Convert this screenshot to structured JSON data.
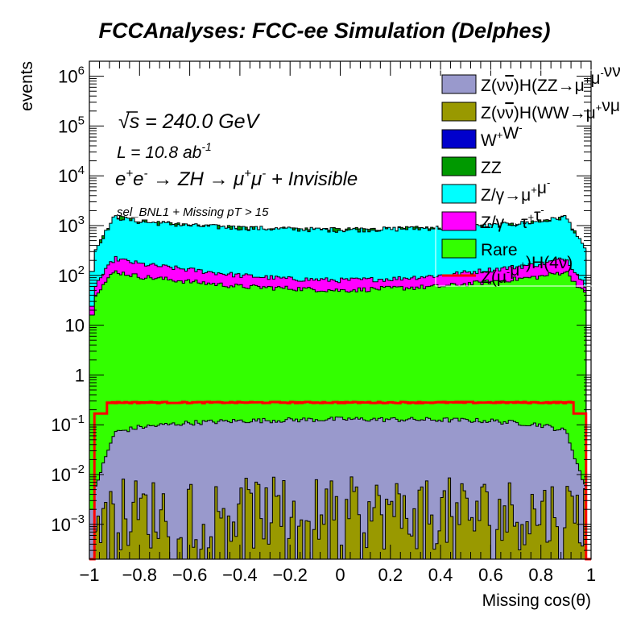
{
  "chart_data": {
    "type": "area",
    "title": "FCCAnalyses: FCC-ee Simulation (Delphes)",
    "xlabel": "Missing cos(θ)",
    "ylabel": "events",
    "y_scale": "log",
    "xlim": [
      -1,
      1
    ],
    "ylim": [
      0.0002,
      2000000
    ],
    "x_ticks": [
      "−1",
      "−0.8",
      "−0.6",
      "−0.4",
      "−0.2",
      "0",
      "0.2",
      "0.4",
      "0.6",
      "0.8",
      "1"
    ],
    "y_ticks": [
      {
        "base": "10",
        "exp": "6",
        "value": 1000000
      },
      {
        "base": "10",
        "exp": "5",
        "value": 100000
      },
      {
        "base": "10",
        "exp": "4",
        "value": 10000
      },
      {
        "base": "10",
        "exp": "3",
        "value": 1000
      },
      {
        "base": "10",
        "exp": "2",
        "value": 100
      },
      {
        "base": "10",
        "exp": "",
        "value": 10
      },
      {
        "base": "1",
        "exp": "",
        "value": 1
      },
      {
        "base": "10",
        "exp": "−1",
        "value": 0.1
      },
      {
        "base": "10",
        "exp": "−2",
        "value": 0.01
      },
      {
        "base": "10",
        "exp": "−3",
        "value": 0.001
      }
    ],
    "annotations": {
      "sqrt_s": {
        "symbol": "√s",
        "rest": " = 240.0 GeV"
      },
      "lumi": {
        "main": "L = 10.8 ab",
        "exp": "-1"
      },
      "process": {
        "t1": "e",
        "s1": "+",
        "t2": "e",
        "s2": "-",
        "t3": " → ZH → μ",
        "s3": "+",
        "t4": "μ",
        "s4": "-",
        "t5": " + Invisible"
      },
      "selection": "sel_BNL1 + Missing pT > 15"
    },
    "x_range_filled": [
      -0.98,
      0.98
    ],
    "edge_bins": {
      "x": [
        -0.99,
        0.97
      ],
      "note": "first and last bins reduced"
    },
    "stack_order_bottom_to_top": [
      "Z(νν̄)H(WW→μ⁺νμ⁻ν̄)",
      "Z(νν̄)H(ZZ→μ⁺μ⁻νν̄)",
      "Rare",
      "Z/γ→τ⁺τ⁻",
      "Z/γ→μ⁺μ⁻",
      "ZZ",
      "W⁺W⁻"
    ],
    "series": [
      {
        "name": "Z(νν̄)H(ZZ→μ⁺μ⁻νν̄)",
        "legend": {
          "a": "Z(ν",
          "bar": "ν",
          "b": ")H(ZZ→μ",
          "s1": "+",
          "c": "μ",
          "s2": "-",
          "d": "ν",
          "e": "ν"
        },
        "color": "#9999cc",
        "kind": "stack",
        "cumulative_top": [
          0.005,
          0.07,
          0.09,
          0.11,
          0.12,
          0.125,
          0.13,
          0.128,
          0.126,
          0.12,
          0.1,
          0.075,
          0.005
        ]
      },
      {
        "name": "Z(νν̄)H(WW→μ⁺νμ⁻ν̄)",
        "legend": {
          "a": "Z(ν",
          "bar": "ν",
          "b": ")H(WW→μ",
          "s1": "+",
          "c": "νμ"
        },
        "color": "#999900",
        "kind": "stack",
        "typical_value": [
          0.0003,
          0.009
        ]
      },
      {
        "name": "W⁺W⁻",
        "legend": {
          "a": "W",
          "s1": "+",
          "b": "W",
          "s2": "-"
        },
        "color": "#0000cc",
        "kind": "stack",
        "cumulative_top": [
          200,
          800,
          700,
          650,
          600,
          580,
          560,
          570,
          600,
          650,
          700,
          800,
          200
        ]
      },
      {
        "name": "ZZ",
        "legend": {
          "a": "ZZ"
        },
        "color": "#009900",
        "kind": "stack",
        "cumulative_top": [
          300,
          1500,
          1200,
          1000,
          900,
          850,
          820,
          850,
          900,
          1000,
          1200,
          1500,
          300
        ]
      },
      {
        "name": "Z/γ→μ⁺μ⁻",
        "legend": {
          "a": "Z/γ→μ",
          "s1": "+",
          "b": "μ",
          "s2": "-"
        },
        "color": "#00ffff",
        "kind": "stack"
      },
      {
        "name": "Z/γ→τ⁺τ⁻",
        "legend": {
          "a": "Z/γ→τ",
          "s1": "+",
          "b": "τ",
          "s2": "-"
        },
        "color": "#ff00ff",
        "kind": "stack",
        "cumulative_top": [
          60,
          220,
          170,
          130,
          100,
          85,
          80,
          85,
          100,
          130,
          170,
          220,
          60
        ]
      },
      {
        "name": "Rare",
        "legend": {
          "a": "Rare"
        },
        "color": "#33ff00",
        "kind": "stack",
        "cumulative_top": [
          40,
          120,
          95,
          75,
          60,
          55,
          50,
          55,
          60,
          75,
          95,
          120,
          40
        ]
      },
      {
        "name": "Z(μ⁻μ⁺)H(4ν)",
        "legend": {
          "a": "Z(μ",
          "s1": "-",
          "b": "μ",
          "s2": "+",
          "c": ")H(4ν)"
        },
        "color": "#ff0000",
        "kind": "line",
        "typical_value": 0.28
      }
    ],
    "profile_x": [
      -0.98,
      -0.9,
      -0.8,
      -0.6,
      -0.4,
      -0.2,
      0,
      0.2,
      0.4,
      0.6,
      0.8,
      0.9,
      0.98
    ]
  }
}
